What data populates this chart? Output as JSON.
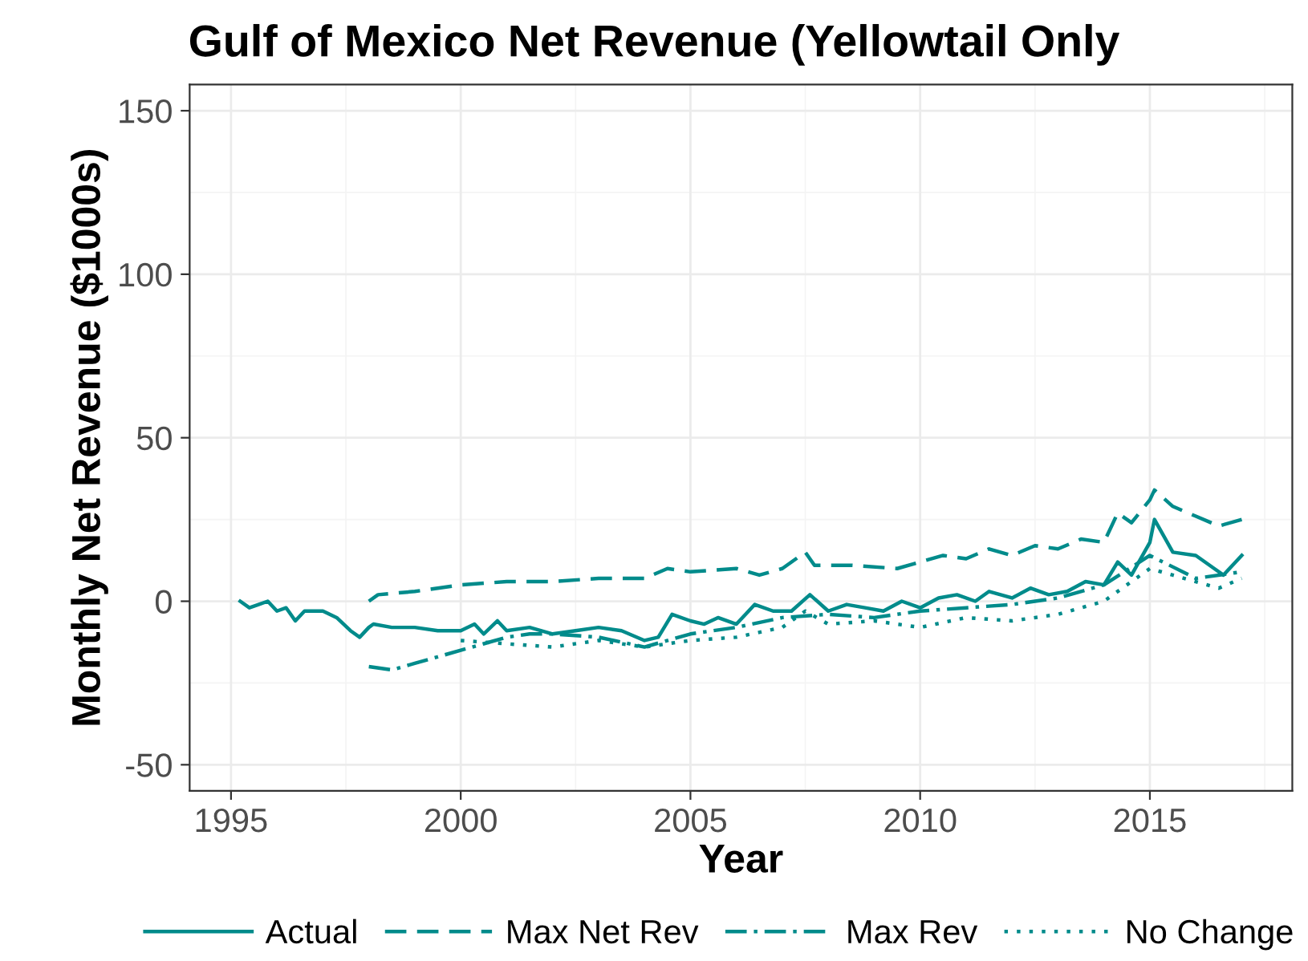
{
  "chart_data": {
    "type": "line",
    "title": "Gulf of Mexico Net Revenue (Yellowtail Only",
    "xlabel": "Year",
    "ylabel": "Monthly Net Revenue ($1000s)",
    "xlim": [
      1994.1,
      2018.1
    ],
    "ylim": [
      -58,
      158
    ],
    "xticks": [
      1995,
      2000,
      2005,
      2010,
      2015
    ],
    "yticks": [
      -50,
      0,
      50,
      100,
      150
    ],
    "grid": true,
    "legend": "bottom",
    "series": [
      {
        "name": "Actual",
        "color": "#008b8b",
        "line_style": "solid",
        "x": [
          1995.2,
          1995.4,
          1995.6,
          1995.8,
          1996.0,
          1996.2,
          1996.4,
          1996.6,
          1997.0,
          1997.3,
          1997.6,
          1997.8,
          1998.0,
          1998.1,
          1998.5,
          1999.0,
          1999.5,
          2000.0,
          2000.3,
          2000.5,
          2000.8,
          2001.0,
          2001.5,
          2002.0,
          2002.5,
          2003.0,
          2003.5,
          2004.0,
          2004.3,
          2004.6,
          2005.0,
          2005.3,
          2005.6,
          2006.0,
          2006.4,
          2006.8,
          2007.2,
          2007.6,
          2008.0,
          2008.4,
          2008.8,
          2009.2,
          2009.6,
          2010.0,
          2010.4,
          2010.8,
          2011.2,
          2011.5,
          2012.0,
          2012.4,
          2012.8,
          2013.2,
          2013.6,
          2014.0,
          2014.3,
          2014.6,
          2015.0,
          2015.1,
          2015.5,
          2016.0,
          2016.4,
          2016.6,
          2017.0
        ],
        "values": [
          0,
          -2,
          -1,
          0,
          -3,
          -2,
          -6,
          -3,
          -3,
          -5,
          -9,
          -11,
          -8,
          -7,
          -8,
          -8,
          -9,
          -9,
          -7,
          -10,
          -6,
          -9,
          -8,
          -10,
          -9,
          -8,
          -9,
          -12,
          -11,
          -4,
          -6,
          -7,
          -5,
          -7,
          -1,
          -3,
          -3,
          2,
          -3,
          -1,
          -2,
          -3,
          0,
          -2,
          1,
          2,
          0,
          3,
          1,
          4,
          2,
          3,
          6,
          5,
          12,
          8,
          18,
          25,
          15,
          14,
          10,
          8,
          14
        ]
      },
      {
        "name": "Max Net Rev",
        "color": "#008b8b",
        "line_style": "dashed",
        "x": [
          1998.0,
          1998.2,
          1999.0,
          2000.0,
          2001.0,
          2002.0,
          2003.0,
          2004.0,
          2004.5,
          2005.0,
          2006.0,
          2006.5,
          2007.0,
          2007.3,
          2007.5,
          2007.7,
          2008.5,
          2009.5,
          2010.0,
          2010.5,
          2011.0,
          2011.5,
          2012.0,
          2012.5,
          2013.0,
          2013.5,
          2014.0,
          2014.3,
          2014.6,
          2015.0,
          2015.1,
          2015.5,
          2016.0,
          2016.5,
          2017.0
        ],
        "values": [
          0,
          2,
          3,
          5,
          6,
          6,
          7,
          7,
          10,
          9,
          10,
          8,
          10,
          13,
          15,
          11,
          11,
          10,
          12,
          14,
          13,
          16,
          14,
          17,
          16,
          19,
          18,
          27,
          24,
          31,
          34,
          29,
          26,
          23,
          25
        ]
      },
      {
        "name": "Max Rev",
        "color": "#008b8b",
        "line_style": "dashdot",
        "x": [
          1998.0,
          1998.5,
          1999.0,
          1999.5,
          2000.0,
          2000.5,
          2001.0,
          2001.5,
          2002.0,
          2003.0,
          2004.0,
          2005.0,
          2006.0,
          2007.0,
          2008.0,
          2009.0,
          2010.0,
          2011.0,
          2012.0,
          2013.0,
          2014.0,
          2015.0,
          2016.0,
          2017.0
        ],
        "values": [
          -20,
          -21,
          -19,
          -17,
          -15,
          -13,
          -11,
          -10,
          -10,
          -11,
          -14,
          -10,
          -8,
          -5,
          -4,
          -5,
          -3,
          -2,
          -1,
          1,
          5,
          14,
          7,
          9
        ]
      },
      {
        "name": "No Change",
        "color": "#008b8b",
        "line_style": "dotted",
        "x": [
          2000.0,
          2001.0,
          2002.0,
          2003.0,
          2004.0,
          2005.0,
          2006.0,
          2007.0,
          2007.5,
          2008.0,
          2009.0,
          2010.0,
          2011.0,
          2012.0,
          2013.0,
          2014.0,
          2015.0,
          2015.5,
          2016.0,
          2016.5,
          2017.0
        ],
        "values": [
          -12,
          -13,
          -14,
          -12,
          -14,
          -12,
          -11,
          -8,
          -3,
          -7,
          -6,
          -8,
          -5,
          -6,
          -4,
          0,
          10,
          8,
          6,
          4,
          7
        ]
      }
    ]
  }
}
